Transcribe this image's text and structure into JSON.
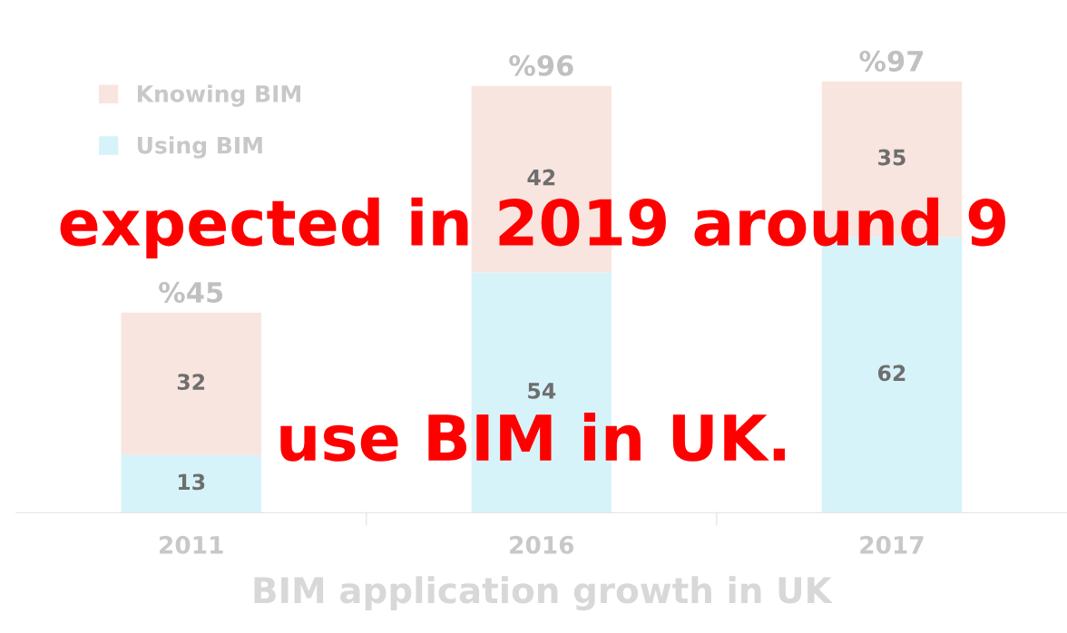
{
  "chart_data": {
    "type": "bar",
    "stacked": true,
    "xlabel": "BIM application growth in UK",
    "categories": [
      "2011",
      "2016",
      "2017"
    ],
    "series": [
      {
        "name": "Using BIM",
        "color": "#d6f3f9",
        "values": [
          13,
          54,
          62
        ]
      },
      {
        "name": "Knowing BIM",
        "color": "#f8e5df",
        "values": [
          32,
          42,
          35
        ]
      }
    ],
    "data_labels": true,
    "totals": [
      "%45",
      "%96",
      "%97"
    ],
    "legend": "top left",
    "annotations": [
      "expected in 2019 around 9",
      "use BIM in UK."
    ]
  }
}
